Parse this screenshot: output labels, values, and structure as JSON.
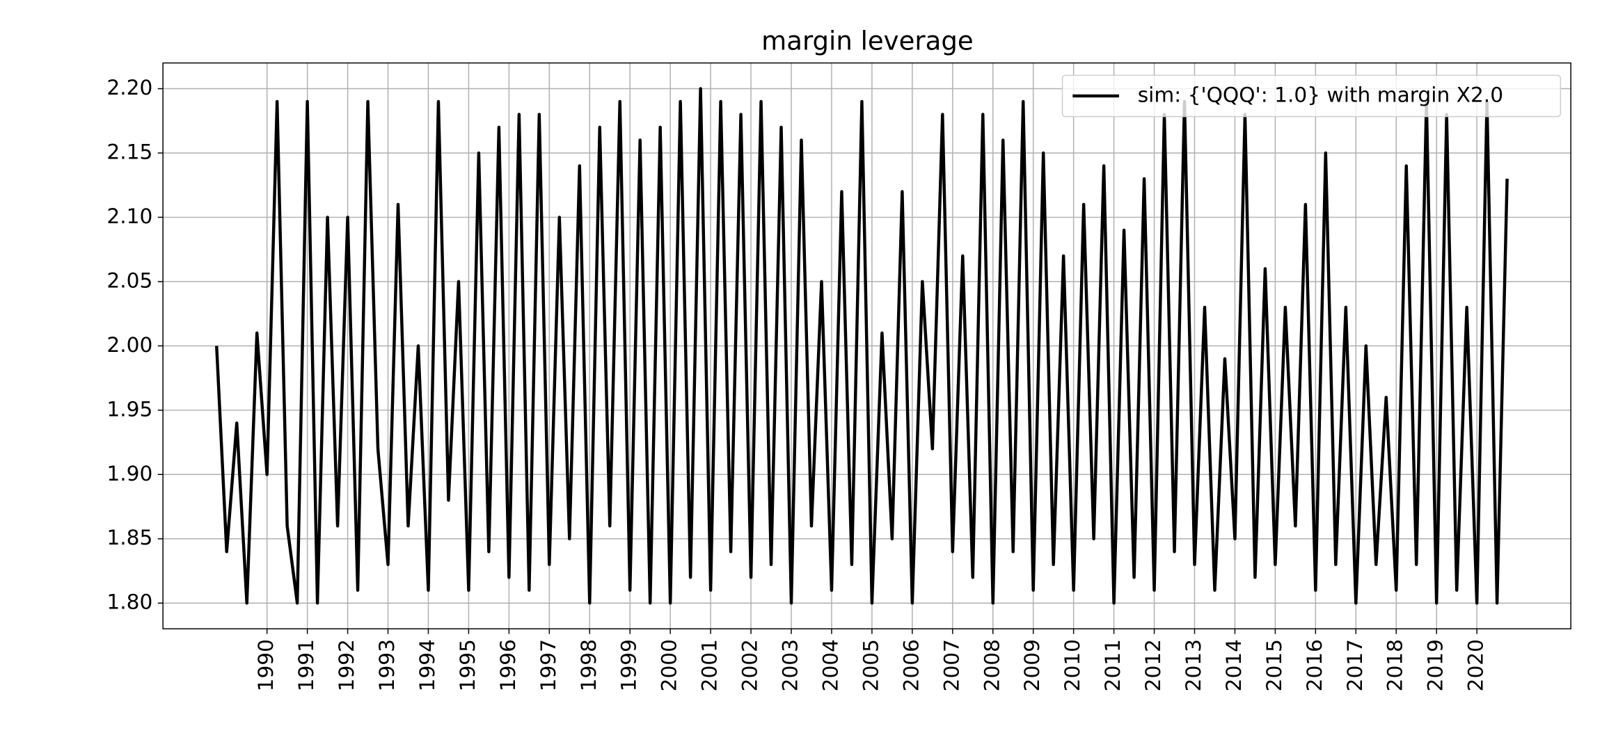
{
  "chart_data": {
    "type": "line",
    "title": "margin leverage",
    "x": [
      1988.75,
      1989,
      1989.25,
      1989.5,
      1989.75,
      1990,
      1990.25,
      1990.5,
      1990.75,
      1991,
      1991.25,
      1991.5,
      1991.75,
      1992,
      1992.25,
      1992.5,
      1992.75,
      1993,
      1993.25,
      1993.5,
      1993.75,
      1994,
      1994.25,
      1994.5,
      1994.75,
      1995,
      1995.25,
      1995.5,
      1995.75,
      1996,
      1996.25,
      1996.5,
      1996.75,
      1997,
      1997.25,
      1997.5,
      1997.75,
      1998,
      1998.25,
      1998.5,
      1998.75,
      1999,
      1999.25,
      1999.5,
      1999.75,
      2000,
      2000.25,
      2000.5,
      2000.75,
      2001,
      2001.25,
      2001.5,
      2001.75,
      2002,
      2002.25,
      2002.5,
      2002.75,
      2003,
      2003.25,
      2003.5,
      2003.75,
      2004,
      2004.25,
      2004.5,
      2004.75,
      2005,
      2005.25,
      2005.5,
      2005.75,
      2006,
      2006.25,
      2006.5,
      2006.75,
      2007,
      2007.25,
      2007.5,
      2007.75,
      2008,
      2008.25,
      2008.5,
      2008.75,
      2009,
      2009.25,
      2009.5,
      2009.75,
      2010,
      2010.25,
      2010.5,
      2010.75,
      2011,
      2011.25,
      2011.5,
      2011.75,
      2012,
      2012.25,
      2012.5,
      2012.75,
      2013,
      2013.25,
      2013.5,
      2013.75,
      2014,
      2014.25,
      2014.5,
      2014.75,
      2015,
      2015.25,
      2015.5,
      2015.75,
      2016,
      2016.25,
      2016.5,
      2016.75,
      2017,
      2017.25,
      2017.5,
      2017.75,
      2018,
      2018.25,
      2018.5,
      2018.75,
      2019,
      2019.25,
      2019.5,
      2019.75,
      2020,
      2020.25,
      2020.5,
      2020.75
    ],
    "series": [
      {
        "name": "sim: {'QQQ': 1.0} with margin X2.0",
        "color": "#000000",
        "values": [
          2.0,
          1.84,
          1.94,
          1.8,
          2.01,
          1.9,
          2.19,
          1.86,
          1.8,
          2.19,
          1.8,
          2.1,
          1.86,
          2.1,
          1.81,
          2.19,
          1.92,
          1.83,
          2.11,
          1.86,
          2.0,
          1.81,
          2.19,
          1.88,
          2.05,
          1.81,
          2.15,
          1.84,
          2.17,
          1.82,
          2.18,
          1.81,
          2.18,
          1.83,
          2.1,
          1.85,
          2.14,
          1.8,
          2.17,
          1.86,
          2.19,
          1.81,
          2.16,
          1.8,
          2.17,
          1.8,
          2.19,
          1.82,
          2.2,
          1.81,
          2.19,
          1.84,
          2.18,
          1.82,
          2.19,
          1.83,
          2.17,
          1.8,
          2.16,
          1.86,
          2.05,
          1.81,
          2.12,
          1.83,
          2.19,
          1.8,
          2.01,
          1.85,
          2.12,
          1.8,
          2.05,
          1.92,
          2.18,
          1.84,
          2.07,
          1.82,
          2.18,
          1.8,
          2.16,
          1.84,
          2.19,
          1.81,
          2.15,
          1.83,
          2.07,
          1.81,
          2.11,
          1.85,
          2.14,
          1.8,
          2.09,
          1.82,
          2.13,
          1.81,
          2.18,
          1.84,
          2.19,
          1.83,
          2.03,
          1.81,
          1.99,
          1.85,
          2.18,
          1.82,
          2.06,
          1.83,
          2.03,
          1.86,
          2.11,
          1.81,
          2.15,
          1.83,
          2.03,
          1.8,
          2.0,
          1.83,
          1.96,
          1.81,
          2.14,
          1.83,
          2.19,
          1.8,
          2.18,
          1.81,
          2.03,
          1.8,
          2.19,
          1.8,
          2.13
        ]
      }
    ],
    "xlim": [
      1987.42,
      2022.33
    ],
    "xticks": [
      1990,
      1991,
      1992,
      1993,
      1994,
      1995,
      1996,
      1997,
      1998,
      1999,
      2000,
      2001,
      2002,
      2003,
      2004,
      2005,
      2006,
      2007,
      2008,
      2009,
      2010,
      2011,
      2012,
      2013,
      2014,
      2015,
      2016,
      2017,
      2018,
      2019,
      2020
    ],
    "ylim": [
      1.78,
      2.22
    ],
    "yticks": [
      {
        "value": 1.8,
        "label": "1.80"
      },
      1.85,
      {
        "value": 1.9,
        "label": "1.90"
      },
      1.95,
      {
        "value": 2.0,
        "label": "2.00"
      },
      2.05,
      {
        "value": 2.1,
        "label": "2.10"
      },
      2.15,
      {
        "value": 2.2,
        "label": "2.20"
      }
    ],
    "grid": true,
    "legend": "upper right"
  }
}
